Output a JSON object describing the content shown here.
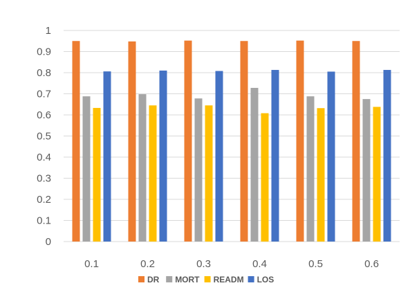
{
  "chart_data": {
    "type": "bar",
    "categories": [
      "0.1",
      "0.2",
      "0.3",
      "0.4",
      "0.5",
      "0.6"
    ],
    "series": [
      {
        "name": "DR",
        "color": "#ED7D31",
        "values": [
          0.95,
          0.948,
          0.952,
          0.95,
          0.952,
          0.95
        ]
      },
      {
        "name": "MORT",
        "color": "#A5A5A5",
        "values": [
          0.688,
          0.698,
          0.678,
          0.728,
          0.688,
          0.675
        ]
      },
      {
        "name": "READM",
        "color": "#FFC000",
        "values": [
          0.633,
          0.645,
          0.645,
          0.608,
          0.632,
          0.638
        ]
      },
      {
        "name": "LOS",
        "color": "#4472C4",
        "values": [
          0.806,
          0.81,
          0.808,
          0.813,
          0.805,
          0.813
        ]
      }
    ],
    "ylim": [
      0,
      1
    ],
    "yticks": [
      "0",
      "0.1",
      "0.2",
      "0.3",
      "0.4",
      "0.5",
      "0.6",
      "0.7",
      "0.8",
      "0.9",
      "1"
    ],
    "grid": true,
    "legend_position": "bottom",
    "title": "",
    "xlabel": "",
    "ylabel": ""
  }
}
